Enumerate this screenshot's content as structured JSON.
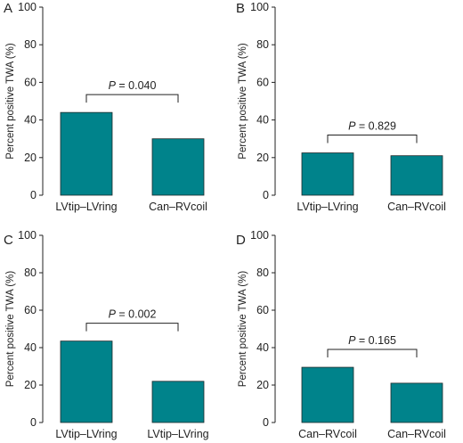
{
  "figure": {
    "bar_color": "#00838b",
    "text_color": "#222222"
  },
  "chart_data": [
    {
      "type": "bar",
      "panel": "A",
      "categories": [
        "LVtip–LVring",
        "Can–RVcoil"
      ],
      "values": [
        44,
        30
      ],
      "ylabel": "Percent positive TWA (%)",
      "ylim": [
        0,
        100
      ],
      "yticks": [
        0,
        20,
        40,
        60,
        80,
        100
      ],
      "annotation": {
        "italic": "P",
        "text": " = 0.040"
      },
      "grid": false
    },
    {
      "type": "bar",
      "panel": "B",
      "categories": [
        "LVtip–LVring",
        "Can–RVcoil"
      ],
      "values": [
        22.5,
        21
      ],
      "ylabel": "Percent positive TWA (%)",
      "ylim": [
        0,
        100
      ],
      "yticks": [
        0,
        20,
        40,
        60,
        80,
        100
      ],
      "annotation": {
        "italic": "P",
        "text": " = 0.829"
      },
      "grid": false
    },
    {
      "type": "bar",
      "panel": "C",
      "categories": [
        "LVtip–LVring",
        "LVtip–LVring"
      ],
      "values": [
        43.5,
        22
      ],
      "ylabel": "Percent positive TWA (%)",
      "ylim": [
        0,
        100
      ],
      "yticks": [
        0,
        20,
        40,
        60,
        80,
        100
      ],
      "annotation": {
        "italic": "P",
        "text": " = 0.002"
      },
      "grid": false
    },
    {
      "type": "bar",
      "panel": "D",
      "categories": [
        "Can–RVcoil",
        "Can–RVcoil"
      ],
      "values": [
        29.5,
        21
      ],
      "ylabel": "Percent positive TWA (%)",
      "ylim": [
        0,
        100
      ],
      "yticks": [
        0,
        20,
        40,
        60,
        80,
        100
      ],
      "annotation": {
        "italic": "P",
        "text": " = 0.165"
      },
      "grid": false
    }
  ]
}
